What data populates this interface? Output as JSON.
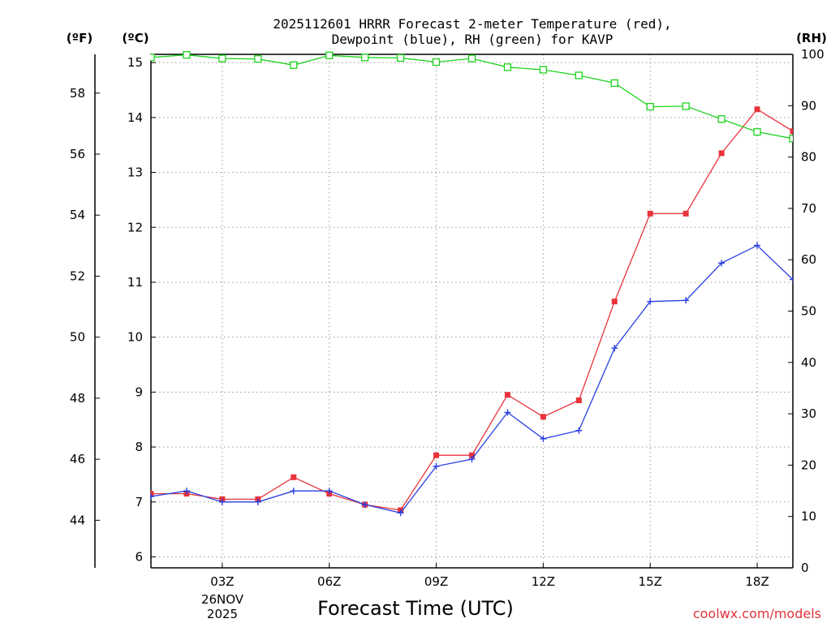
{
  "chart_data": {
    "type": "line",
    "title_line1": "2025112601 HRRR Forecast 2-meter Temperature (red),",
    "title_line2": "Dewpoint (blue), RH (green) for KAVP",
    "unit_f": "(ºF)",
    "unit_c": "(ºC)",
    "unit_rh": "(RH)",
    "xlabel": "Forecast Time (UTC)",
    "credit": "coolwx.com/models",
    "date_label_1": "26NOV",
    "date_label_2": "2025",
    "x_hours": [
      1,
      2,
      3,
      4,
      5,
      6,
      7,
      8,
      9,
      10,
      11,
      12,
      13,
      14,
      15,
      16,
      17,
      18,
      19
    ],
    "x_range": [
      1,
      19
    ],
    "x_ticks": [
      {
        "hour": 3,
        "label": "03Z"
      },
      {
        "hour": 6,
        "label": "06Z"
      },
      {
        "hour": 9,
        "label": "09Z"
      },
      {
        "hour": 12,
        "label": "12Z"
      },
      {
        "hour": 15,
        "label": "15Z"
      },
      {
        "hour": 18,
        "label": "18Z"
      }
    ],
    "celsius_range": [
      5.8,
      15.15
    ],
    "celsius_ticks": [
      "6",
      "7",
      "8",
      "9",
      "10",
      "11",
      "12",
      "13",
      "14",
      "15"
    ],
    "fahrenheit_ticks": [
      "44",
      "46",
      "48",
      "50",
      "52",
      "54",
      "56",
      "58"
    ],
    "rh_range": [
      0,
      100
    ],
    "rh_ticks": [
      "0",
      "10",
      "20",
      "30",
      "40",
      "50",
      "60",
      "70",
      "80",
      "90",
      "100"
    ],
    "series": [
      {
        "name": "Temperature",
        "unit": "C",
        "color": "#e8333b",
        "marker": "filled-square",
        "values": [
          7.15,
          7.15,
          7.05,
          7.05,
          7.45,
          7.15,
          6.95,
          6.85,
          7.85,
          7.85,
          8.95,
          8.55,
          8.85,
          10.65,
          12.25,
          12.25,
          13.35,
          14.15,
          13.75
        ]
      },
      {
        "name": "Dewpoint",
        "unit": "C",
        "color": "#2a3fe0",
        "marker": "plus",
        "values": [
          7.1,
          7.2,
          7.0,
          7.0,
          7.2,
          7.2,
          6.95,
          6.8,
          7.65,
          7.78,
          8.63,
          8.15,
          8.3,
          9.8,
          10.65,
          10.67,
          11.35,
          11.67,
          11.05
        ]
      },
      {
        "name": "RH",
        "unit": "%",
        "color": "#1cd31c",
        "marker": "open-square",
        "values": [
          99.4,
          99.9,
          99.2,
          99.1,
          97.9,
          99.8,
          99.4,
          99.3,
          98.5,
          99.2,
          97.5,
          97.0,
          95.9,
          94.4,
          89.8,
          89.9,
          87.4,
          84.9,
          83.6
        ]
      }
    ]
  }
}
